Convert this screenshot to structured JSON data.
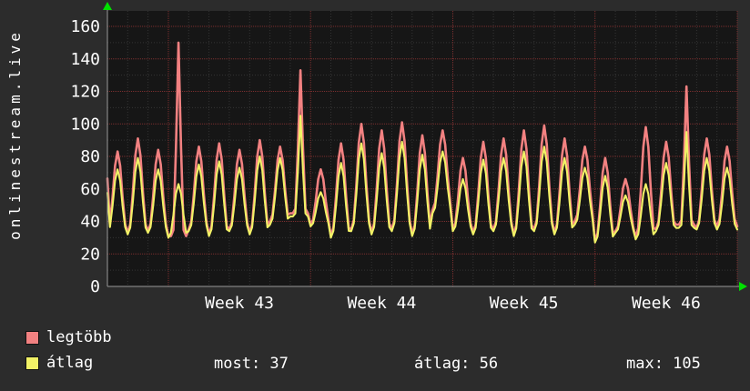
{
  "graph": {
    "vertical_title": "onlinestream.live",
    "colors": {
      "background": "#2c2c2c",
      "plot_bg": "#161616",
      "grid_major": "#7a2f2f",
      "grid_minor": "#343434",
      "axis": "#999999",
      "text": "#ffffff",
      "arrow": "#00e000",
      "series_max": "#f28181",
      "series_avg": "#f2f266"
    }
  },
  "legend": {
    "items": [
      {
        "label": "legtöbb",
        "color": "#f28181"
      },
      {
        "label": "átlag",
        "color": "#f2f266"
      }
    ]
  },
  "stats": {
    "most": "most: 37",
    "atlag": "átlag: 56",
    "max": "max: 105"
  },
  "chart_data": {
    "type": "line",
    "title": "",
    "xlabel": "",
    "ylabel": "onlinestream.live",
    "ylim": [
      0,
      160
    ],
    "yticks": [
      0,
      20,
      40,
      60,
      80,
      100,
      120,
      140,
      160
    ],
    "grid": true,
    "legend_position": "bottom-left",
    "x_unit": "day",
    "n_days": 31,
    "week_boundaries_day": [
      3,
      10,
      17,
      24,
      31
    ],
    "week_labels": [
      "Week 43",
      "Week 44",
      "Week 45",
      "Week 46"
    ],
    "spike_days": [
      3,
      9,
      28
    ],
    "series": [
      {
        "name": "legtöbb",
        "color": "#f28181",
        "daily_peak": [
          83,
          91,
          84,
          150,
          86,
          88,
          84,
          90,
          86,
          133,
          72,
          88,
          100,
          96,
          101,
          93,
          96,
          79,
          89,
          91,
          96,
          99,
          91,
          86,
          79,
          66,
          98,
          89,
          123,
          91,
          86
        ],
        "daily_trough": [
          34,
          33,
          34,
          31,
          35,
          32,
          35,
          33,
          40,
          45,
          38,
          31,
          35,
          33,
          35,
          32,
          47,
          35,
          33,
          35,
          32,
          35,
          33,
          40,
          28,
          34,
          30,
          35,
          38,
          36,
          37
        ]
      },
      {
        "name": "átlag",
        "color": "#f2f266",
        "daily_peak": [
          72,
          79,
          72,
          63,
          75,
          77,
          73,
          80,
          79,
          105,
          58,
          76,
          88,
          82,
          89,
          81,
          83,
          66,
          78,
          79,
          83,
          86,
          79,
          73,
          68,
          56,
          63,
          76,
          95,
          79,
          73
        ],
        "daily_trough": [
          33,
          32,
          33,
          30,
          34,
          31,
          34,
          32,
          38,
          43,
          37,
          30,
          34,
          32,
          34,
          31,
          45,
          34,
          32,
          34,
          31,
          34,
          32,
          38,
          27,
          33,
          29,
          34,
          36,
          35,
          35
        ]
      }
    ]
  }
}
